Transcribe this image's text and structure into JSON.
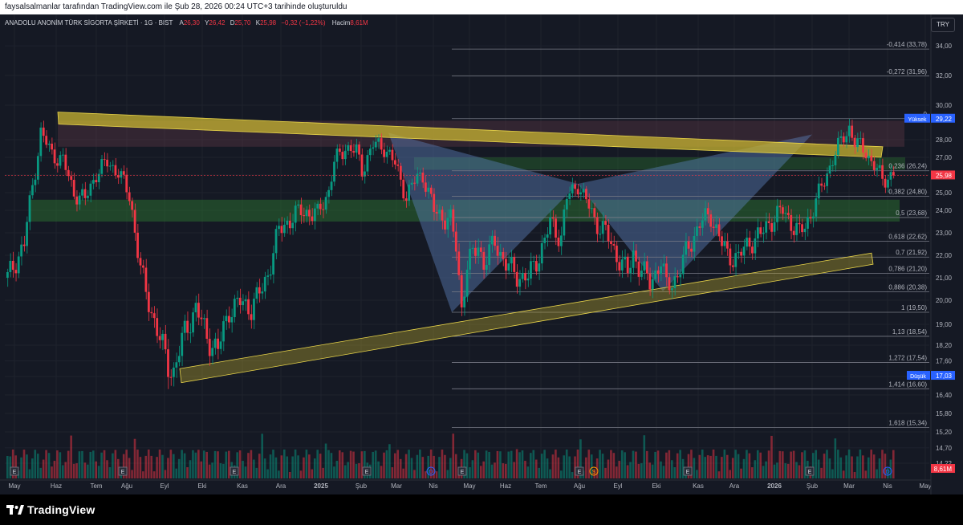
{
  "header": {
    "author_line": "faysalsalmanlar tarafından TradingView.com ile Şub 28, 2026 00:24 UTC+3 tarihinde oluşturuldu"
  },
  "legend": {
    "symbol": "ANADOLU ANONİM TÜRK SİGORTA ŞİRKETİ · 1G · BIST",
    "a_label": "A",
    "a_val": "26,30",
    "y_label": "Y",
    "y_val": "26,42",
    "d_label": "D",
    "d_val": "25,70",
    "k_label": "K",
    "k_val": "25,98",
    "change": "−0,32 (−1,22%)",
    "vol_label": "Hacim",
    "vol_val": "8,61M"
  },
  "currency_button": "TRY",
  "footer": {
    "brand": "TradingView"
  },
  "colors": {
    "up": "#089981",
    "down": "#f23645",
    "bg": "#151924",
    "grid": "#1e222d",
    "fib": "#787b86",
    "trend": "#c8b432",
    "zone_green": "#2e7d32",
    "harmonic": "#5b7fb8",
    "price_tag": "#f23645"
  },
  "chart_data": {
    "type": "candlestick",
    "title": "ANADOLU ANONİM TÜRK SİGORTA ŞİRKETİ · 1G · BIST",
    "ylim": [
      14.0,
      34.6
    ],
    "y_ticks": [
      "34,00",
      "32,00",
      "30,00",
      "28,00",
      "27,00",
      "26,00",
      "25,00",
      "24,00",
      "23,00",
      "22,00",
      "21,00",
      "20,00",
      "19,00",
      "18,20",
      "17,60",
      "17,00",
      "16,40",
      "15,80",
      "15,20",
      "14,70",
      "14,22"
    ],
    "x_ticks": [
      "May",
      "Haz",
      "Tem",
      "Ağu",
      "Eyl",
      "Eki",
      "Kas",
      "Ara",
      "2025",
      "Şub",
      "Mar",
      "Nis",
      "May",
      "Haz",
      "Tem",
      "Ağu",
      "Eyl",
      "Eki",
      "Kas",
      "Ara",
      "2026",
      "Şub",
      "Mar",
      "Nis",
      "May"
    ],
    "price_path": [
      [
        0,
        21.0
      ],
      [
        3,
        22.5
      ],
      [
        5,
        26.3
      ],
      [
        6,
        28.4
      ],
      [
        8,
        27.2
      ],
      [
        10,
        26.8
      ],
      [
        12,
        25.0
      ],
      [
        14,
        24.6
      ],
      [
        16,
        26.1
      ],
      [
        18,
        26.7
      ],
      [
        20,
        26.2
      ],
      [
        22,
        24.8
      ],
      [
        24,
        21.4
      ],
      [
        25,
        20.3
      ],
      [
        27,
        18.8
      ],
      [
        29,
        17.4
      ],
      [
        30,
        17.2
      ],
      [
        32,
        18.7
      ],
      [
        34,
        19.7
      ],
      [
        36,
        18.5
      ],
      [
        38,
        18.0
      ],
      [
        40,
        19.6
      ],
      [
        42,
        19.9
      ],
      [
        44,
        19.7
      ],
      [
        46,
        20.5
      ],
      [
        47,
        21.2
      ],
      [
        49,
        23.1
      ],
      [
        51,
        23.6
      ],
      [
        53,
        24.0
      ],
      [
        56,
        23.8
      ],
      [
        58,
        25.1
      ],
      [
        59,
        26.7
      ],
      [
        61,
        27.6
      ],
      [
        63,
        27.3
      ],
      [
        64,
        26.3
      ],
      [
        66,
        27.7
      ],
      [
        68,
        27.6
      ],
      [
        70,
        26.6
      ],
      [
        72,
        24.8
      ],
      [
        74,
        25.9
      ],
      [
        75,
        26.0
      ],
      [
        77,
        24.0
      ],
      [
        80,
        23.5
      ],
      [
        81,
        22.4
      ],
      [
        82,
        19.7
      ],
      [
        83,
        21.5
      ],
      [
        85,
        22.5
      ],
      [
        86,
        21.6
      ],
      [
        88,
        22.6
      ],
      [
        90,
        21.6
      ],
      [
        92,
        21.1
      ],
      [
        94,
        21.0
      ],
      [
        96,
        22.0
      ],
      [
        98,
        23.4
      ],
      [
        100,
        22.8
      ],
      [
        101,
        24.7
      ],
      [
        103,
        25.5
      ],
      [
        104,
        24.8
      ],
      [
        106,
        23.6
      ],
      [
        108,
        23.0
      ],
      [
        110,
        22.0
      ],
      [
        112,
        21.2
      ],
      [
        113,
        22.1
      ],
      [
        114,
        21.5
      ],
      [
        116,
        20.8
      ],
      [
        118,
        21.7
      ],
      [
        119,
        20.6
      ],
      [
        121,
        21.1
      ],
      [
        123,
        22.4
      ],
      [
        125,
        23.4
      ],
      [
        127,
        23.8
      ],
      [
        129,
        22.5
      ],
      [
        130,
        22.0
      ],
      [
        132,
        21.9
      ],
      [
        134,
        22.6
      ],
      [
        136,
        22.9
      ],
      [
        138,
        23.6
      ],
      [
        140,
        24.0
      ],
      [
        142,
        23.3
      ],
      [
        143,
        22.9
      ],
      [
        145,
        23.8
      ],
      [
        147,
        25.3
      ],
      [
        149,
        26.9
      ],
      [
        151,
        28.2
      ],
      [
        152,
        28.7
      ],
      [
        153,
        27.8
      ],
      [
        155,
        27.4
      ],
      [
        156,
        26.7
      ],
      [
        158,
        25.8
      ],
      [
        160,
        25.98
      ]
    ],
    "volume_max_label": "8,61M",
    "price_tags": {
      "current": "25,98",
      "high_label": "Yüksek",
      "high": "29,22",
      "low_label": "Düşük",
      "low": "17,03"
    },
    "fib_levels": [
      {
        "label": "-0,414 (33,78)",
        "price": 33.78
      },
      {
        "label": "-0,272 (31,96)",
        "price": 31.96
      },
      {
        "label": "0",
        "price": 29.22
      },
      {
        "label": "0,236 (26,24)",
        "price": 26.24
      },
      {
        "label": "0,382 (24,80)",
        "price": 24.8
      },
      {
        "label": "0,5 (23,68)",
        "price": 23.68
      },
      {
        "label": "0,618 (22,62)",
        "price": 22.62
      },
      {
        "label": "0,7 (21,92)",
        "price": 21.92
      },
      {
        "label": "0,786 (21,20)",
        "price": 21.2
      },
      {
        "label": "0,886 (20,38)",
        "price": 20.38
      },
      {
        "label": "1 (19,50)",
        "price": 19.5
      },
      {
        "label": "1,13 (18,54)",
        "price": 18.54
      },
      {
        "label": "1,272 (17,54)",
        "price": 17.54
      },
      {
        "label": "1,414 (16,60)",
        "price": 16.6
      },
      {
        "label": "1,618 (15,34)",
        "price": 15.34
      }
    ],
    "events": [
      "E",
      "E",
      "E",
      "E",
      "D",
      "E",
      "E",
      "S",
      "E",
      "E",
      "D"
    ]
  }
}
